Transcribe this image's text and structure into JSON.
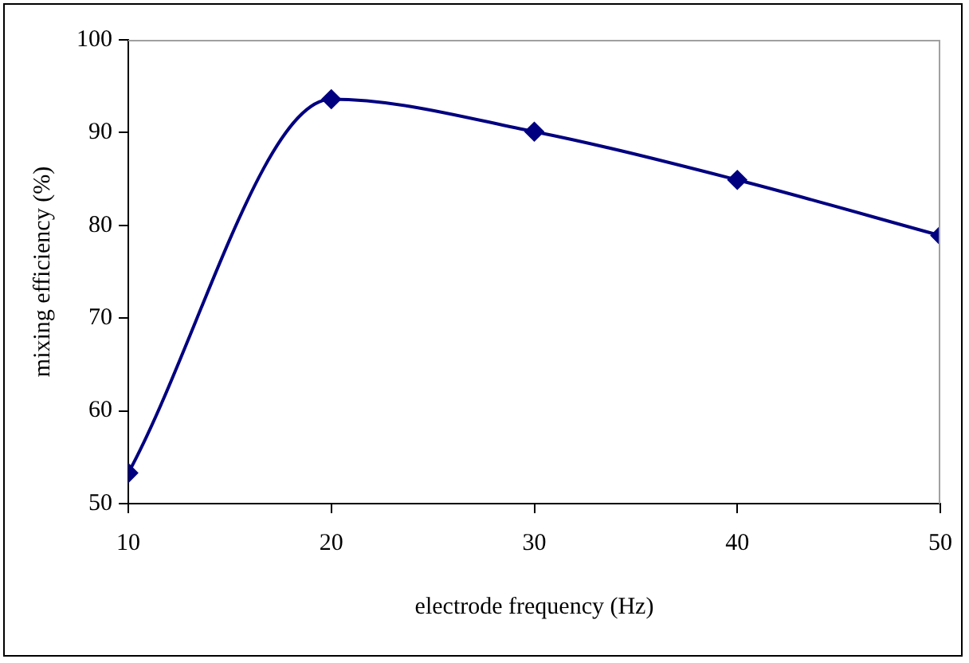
{
  "chart_data": {
    "type": "line",
    "xlabel": "electrode frequency (Hz)",
    "ylabel": "mixing efficiency (%)",
    "x": [
      10,
      20,
      30,
      40,
      50
    ],
    "series": [
      {
        "color": "#000080",
        "values": [
          53.3,
          93.6,
          90.1,
          84.9,
          78.9
        ]
      }
    ],
    "xlim": [
      10,
      50
    ],
    "xticks": [
      10,
      20,
      30,
      40,
      50
    ],
    "ylim": [
      50,
      100
    ],
    "yticks": [
      50,
      60,
      70,
      80,
      90,
      100
    ],
    "grid": false,
    "legend": false,
    "marker": "diamond",
    "line_style": "solid"
  }
}
